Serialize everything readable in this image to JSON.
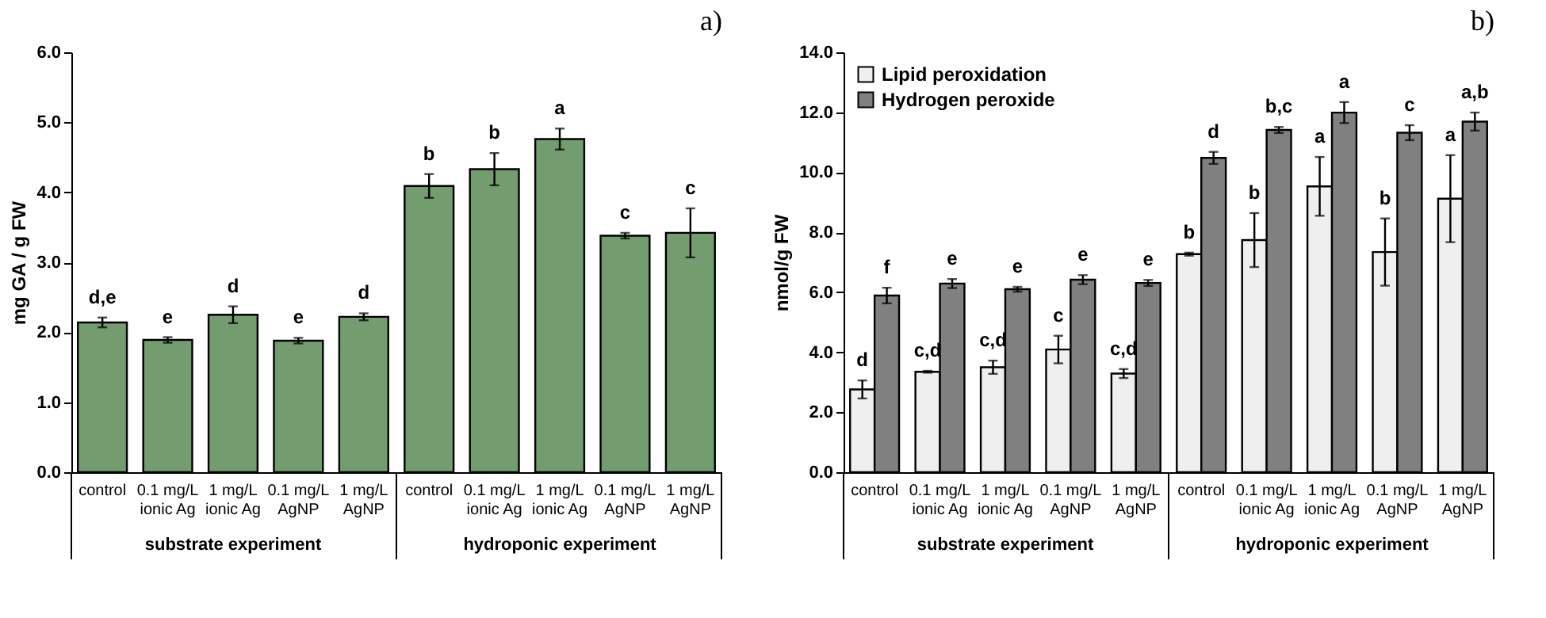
{
  "chart_data": [
    {
      "type": "bar",
      "title": "a)",
      "ylabel": "mg GA / g FW",
      "categories": [
        "control",
        "0.1 mg/L ionic Ag",
        "1 mg/L ionic Ag",
        "0.1 mg/L AgNP",
        "1 mg/L AgNP",
        "control",
        "0.1 mg/L ionic Ag",
        "1 mg/L ionic Ag",
        "0.1 mg/L AgNP",
        "1 mg/L AgNP"
      ],
      "series": [
        {
          "color": "#739c6f",
          "values": [
            2.14,
            1.89,
            2.25,
            1.88,
            2.22,
            4.09,
            4.33,
            4.76,
            3.38,
            3.42
          ],
          "errors": [
            0.07,
            0.04,
            0.12,
            0.04,
            0.05,
            0.17,
            0.23,
            0.15,
            0.04,
            0.35
          ],
          "value_labels": [
            "d,e",
            "e",
            "d",
            "e",
            "d",
            "b",
            "b",
            "a",
            "c",
            "c"
          ]
        }
      ],
      "ylim": [
        0,
        6
      ],
      "yticks": [
        {
          "value": 0,
          "label": "0.0"
        },
        {
          "value": 1,
          "label": "1.0"
        },
        {
          "value": 2,
          "label": "2.0"
        },
        {
          "value": 3,
          "label": "3.0"
        },
        {
          "value": 4,
          "label": "4.0"
        },
        {
          "value": 5,
          "label": "5.0"
        },
        {
          "value": 6,
          "label": "6.0"
        }
      ],
      "grid": false,
      "annotations": [
        "substrate experiment",
        "hydroponic experiment"
      ]
    },
    {
      "type": "bar",
      "title": "b)",
      "ylabel": "nmol/g FW",
      "categories": [
        "control",
        "0.1 mg/L ionic Ag",
        "1 mg/L ionic Ag",
        "0.1 mg/L AgNP",
        "1 mg/L AgNP",
        "control",
        "0.1 mg/L ionic Ag",
        "1 mg/L ionic Ag",
        "0.1 mg/L AgNP",
        "1 mg/L AgNP"
      ],
      "series": [
        {
          "name": "Lipid peroxidation",
          "color": "#efefef",
          "values": [
            2.76,
            3.35,
            3.5,
            4.09,
            3.29,
            7.27,
            7.74,
            9.53,
            7.34,
            9.12
          ],
          "errors": [
            0.3,
            0.03,
            0.22,
            0.46,
            0.15,
            0.05,
            0.9,
            0.98,
            1.12,
            1.45
          ],
          "value_labels": [
            "d",
            "c,d",
            "c,d",
            "c",
            "c,d",
            "b",
            "b",
            "a",
            "b",
            "a"
          ]
        },
        {
          "name": "Hydrogen peroxide",
          "color": "#808080",
          "values": [
            5.89,
            6.29,
            6.1,
            6.42,
            6.31,
            10.48,
            11.41,
            11.99,
            11.32,
            11.69
          ],
          "errors": [
            0.26,
            0.15,
            0.08,
            0.15,
            0.1,
            0.2,
            0.1,
            0.35,
            0.25,
            0.3
          ],
          "value_labels": [
            "f",
            "e",
            "e",
            "e",
            "e",
            "d",
            "b,c",
            "a",
            "c",
            "a,b"
          ]
        }
      ],
      "ylim": [
        0,
        14
      ],
      "yticks": [
        {
          "value": 0,
          "label": "0.0"
        },
        {
          "value": 2,
          "label": "2.0"
        },
        {
          "value": 4,
          "label": "4.0"
        },
        {
          "value": 6,
          "label": "6.0"
        },
        {
          "value": 8,
          "label": "8.0"
        },
        {
          "value": 10,
          "label": "10.0"
        },
        {
          "value": 12,
          "label": "12.0"
        },
        {
          "value": 14,
          "label": "14.0"
        }
      ],
      "grid": false,
      "legend": "top left",
      "annotations": [
        "substrate experiment",
        "hydroponic experiment"
      ]
    }
  ]
}
